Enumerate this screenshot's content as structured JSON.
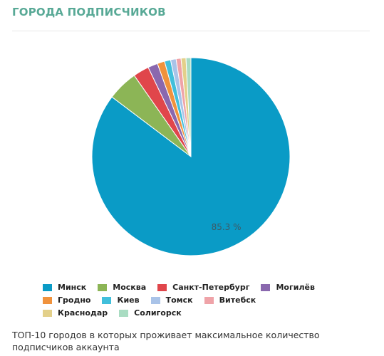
{
  "chart_data": {
    "type": "pie",
    "title": "ГОРОДА ПОДПИСЧИКОВ",
    "categories": [
      "Минск",
      "Москва",
      "Санкт-Петербург",
      "Могилёв",
      "Гродно",
      "Киев",
      "Томск",
      "Витебск",
      "Краснодар",
      "Солигорск"
    ],
    "values": [
      85.3,
      5.0,
      2.6,
      1.6,
      1.2,
      1.0,
      0.9,
      0.8,
      0.8,
      0.8
    ],
    "value_labels": [
      "85.3 %",
      null,
      null,
      null,
      null,
      null,
      null,
      null,
      null,
      null
    ],
    "colors": [
      "#0a9bc6",
      "#8cb556",
      "#e0464b",
      "#8a68ae",
      "#f0923c",
      "#41bfdb",
      "#a9c3e8",
      "#efa3a8",
      "#e3d08a",
      "#a9dcc2"
    ],
    "description": "ТОП-10 городов в которых проживает максимальное количество подписчиков аккаунта"
  }
}
